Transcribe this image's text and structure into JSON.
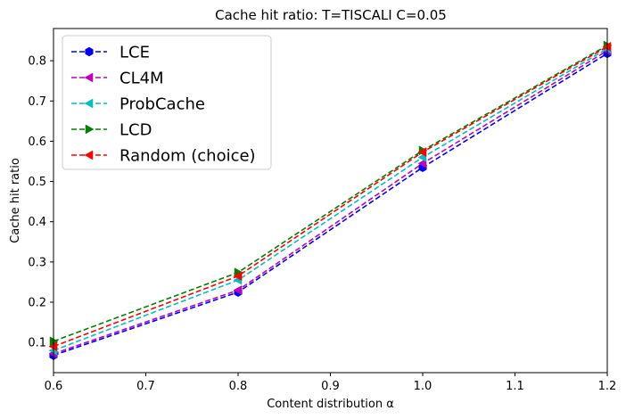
{
  "chart_data": {
    "type": "line",
    "title": "Cache hit ratio: T=TISCALI C=0.05",
    "xlabel": "Content distribution α",
    "ylabel": "Cache hit ratio",
    "xlim": [
      0.6,
      1.2
    ],
    "ylim": [
      0.025,
      0.88
    ],
    "x_ticks": [
      "0.6",
      "0.7",
      "0.8",
      "0.9",
      "1.0",
      "1.1",
      "1.2"
    ],
    "y_ticks": [
      "0.1",
      "0.2",
      "0.3",
      "0.4",
      "0.5",
      "0.6",
      "0.7",
      "0.8"
    ],
    "grid": false,
    "legend_position": "upper-left",
    "x": [
      0.6,
      0.8,
      1.0,
      1.2
    ],
    "series": [
      {
        "name": "LCE",
        "color": "#0000ff",
        "marker": "hexagon",
        "values": [
          0.068,
          0.225,
          0.535,
          0.818
        ]
      },
      {
        "name": "CL4M",
        "color": "#bf00bf",
        "marker": "triangle-left",
        "values": [
          0.072,
          0.23,
          0.545,
          0.825
        ]
      },
      {
        "name": "ProbCache",
        "color": "#00bfbf",
        "marker": "triangle-left",
        "values": [
          0.08,
          0.255,
          0.56,
          0.83
        ]
      },
      {
        "name": "LCD",
        "color": "#008000",
        "marker": "triangle-right",
        "values": [
          0.103,
          0.274,
          0.577,
          0.838
        ]
      },
      {
        "name": "Random (choice)",
        "color": "#ff0000",
        "marker": "triangle-left",
        "values": [
          0.09,
          0.265,
          0.573,
          0.835
        ]
      }
    ]
  }
}
